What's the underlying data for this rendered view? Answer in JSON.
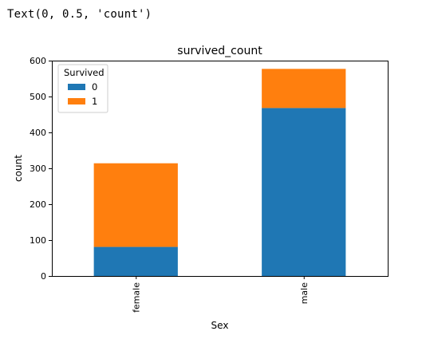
{
  "cell_output": "Text(0, 0.5, 'count')",
  "chart_data": {
    "type": "bar",
    "stacked": true,
    "title": "survived_count",
    "xlabel": "Sex",
    "ylabel": "count",
    "categories": [
      "female",
      "male"
    ],
    "series": [
      {
        "name": "0",
        "values": [
          81,
          468
        ],
        "color": "#1f77b4"
      },
      {
        "name": "1",
        "values": [
          233,
          109
        ],
        "color": "#ff7f0e"
      }
    ],
    "ylim": [
      0,
      600
    ],
    "yticks": [
      0,
      100,
      200,
      300,
      400,
      500,
      600
    ],
    "grid": false,
    "legend": {
      "title": "Survived",
      "placement": "top-left"
    }
  }
}
